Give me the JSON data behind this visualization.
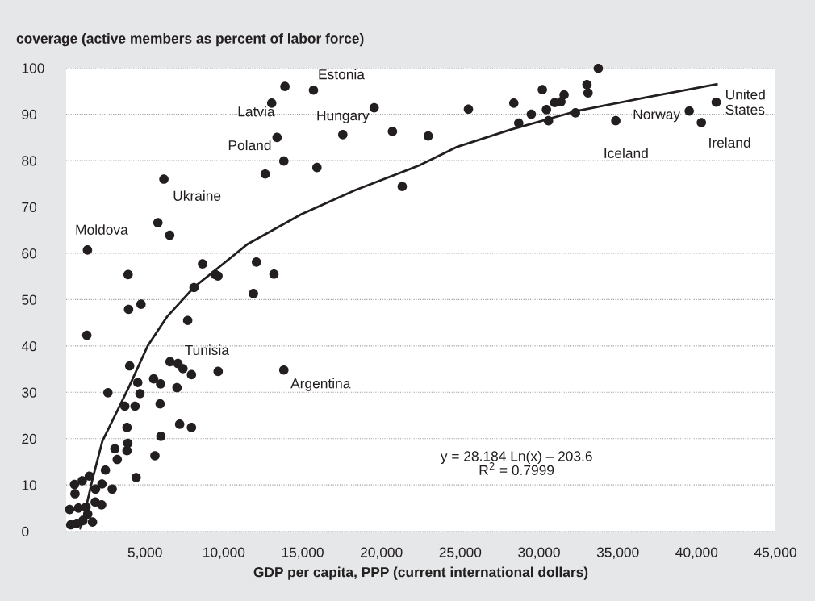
{
  "chart_data": {
    "type": "scatter",
    "ylabel": "coverage (active members as percent of labor force)",
    "xlabel": "GDP per capita, PPP (current international dollars)",
    "xlim": [
      0,
      45000
    ],
    "xticks": [
      {
        "value": 5000,
        "label": "5,000"
      },
      {
        "value": 10000,
        "label": "10,000"
      },
      {
        "value": 15000,
        "label": "15,000"
      },
      {
        "value": 20000,
        "label": "20,000"
      },
      {
        "value": 25000,
        "label": "25,000"
      },
      {
        "value": 30000,
        "label": "30,000"
      },
      {
        "value": 35000,
        "label": "35,000"
      },
      {
        "value": 40000,
        "label": "40,000"
      },
      {
        "value": 45000,
        "label": "45,000"
      }
    ],
    "ylim": [
      0,
      100
    ],
    "yticks": [
      0,
      10,
      20,
      30,
      40,
      50,
      60,
      70,
      80,
      90,
      100
    ],
    "grid": "y",
    "legend": false,
    "series": [
      {
        "color": "#231f20",
        "marker": "circle",
        "x": [
          13880,
          15690,
          13040,
          19540,
          13380,
          17550,
          20700,
          13810,
          12630,
          15910,
          21320,
          6200,
          5820,
          6570,
          1350,
          3930,
          8650,
          9460,
          9630,
          8110,
          12070,
          13180,
          11880,
          3960,
          4750,
          7710,
          1310,
          4030,
          6590,
          7090,
          7410,
          7950,
          9640,
          13810,
          5550,
          5990,
          4540,
          7030,
          4680,
          2650,
          3720,
          4370,
          5960,
          3860,
          7200,
          7950,
          6010,
          3910,
          3860,
          3090,
          3240,
          5630,
          4440,
          2490,
          1470,
          1020,
          530,
          2270,
          1860,
          2920,
          560,
          1840,
          2250,
          220,
          780,
          1260,
          1370,
          1060,
          670,
          290,
          1670,
          33760,
          33040,
          33110,
          30210,
          31590,
          31390,
          30990,
          30470,
          28400,
          25520,
          29510,
          28710,
          30600,
          32310,
          22970,
          34870,
          39530,
          40300,
          41240
        ],
        "values": [
          96.0,
          95.2,
          92.4,
          91.4,
          85.0,
          85.6,
          86.3,
          79.9,
          77.1,
          78.5,
          74.4,
          76.0,
          66.6,
          63.9,
          60.7,
          55.4,
          57.7,
          55.4,
          55.1,
          52.6,
          58.1,
          55.5,
          51.3,
          47.9,
          49.0,
          45.5,
          42.3,
          35.7,
          36.6,
          36.2,
          35.1,
          33.8,
          34.5,
          34.8,
          32.9,
          31.8,
          32.1,
          31.0,
          29.7,
          29.9,
          27.0,
          27.0,
          27.5,
          22.4,
          23.1,
          22.4,
          20.5,
          19.0,
          17.4,
          17.8,
          15.5,
          16.3,
          11.6,
          13.2,
          11.9,
          10.9,
          10.1,
          10.2,
          9.1,
          9.1,
          8.1,
          6.3,
          5.7,
          4.7,
          5.0,
          5.2,
          3.7,
          2.3,
          1.7,
          1.4,
          2.0,
          99.9,
          96.4,
          94.6,
          95.3,
          94.2,
          92.7,
          92.5,
          91.0,
          92.4,
          91.1,
          90.0,
          88.1,
          88.6,
          90.3,
          85.3,
          88.6,
          90.7,
          88.2,
          92.6
        ]
      },
      {
        "type": "line",
        "color": "#231f20",
        "marker": "none",
        "line_style": "solid",
        "x": [
          920,
          1280,
          1690,
          2300,
          2970,
          3990,
          5170,
          6400,
          8090,
          11520,
          14900,
          18330,
          22430,
          24830,
          28210,
          32510,
          36760,
          41270
        ],
        "values": [
          0.6,
          5.5,
          11.5,
          19.5,
          24.1,
          31.2,
          40.0,
          46.3,
          52.6,
          62.0,
          68.4,
          73.6,
          79.0,
          83.0,
          86.7,
          90.8,
          93.6,
          96.5
        ]
      }
    ],
    "annotations": [
      {
        "text": "Estonia",
        "x": 15690,
        "y": 95.2
      },
      {
        "text": "Latvia",
        "x": 13380,
        "y": 85.0
      },
      {
        "text": "Hungary",
        "x": 17550,
        "y": 85.6
      },
      {
        "text": "Poland",
        "x": 13810,
        "y": 79.9
      },
      {
        "text": "Ukraine",
        "x": 6200,
        "y": 76.0
      },
      {
        "text": "Moldova",
        "x": 1350,
        "y": 60.7
      },
      {
        "text": "Tunisia",
        "x": 9640,
        "y": 34.5
      },
      {
        "text": "Argentina",
        "x": 13810,
        "y": 34.8
      },
      {
        "text": "Iceland",
        "x": 34870,
        "y": 88.6
      },
      {
        "text": "Norway",
        "x": 39530,
        "y": 90.7
      },
      {
        "text": "Ireland",
        "x": 40300,
        "y": 88.2
      },
      {
        "text": "United\nStates",
        "x": 41240,
        "y": 92.6
      },
      "y = 28.184 Ln(x) – 203.6\nR$^{2}$ = 0.7999"
    ]
  }
}
